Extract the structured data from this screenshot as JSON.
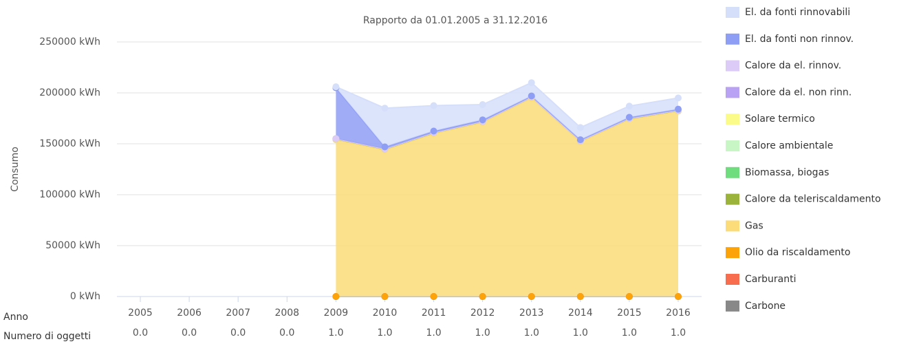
{
  "chart_data": {
    "type": "area",
    "stacked": true,
    "title": "Rapporto da 01.01.2005 a 31.12.2016",
    "y_label": "Consumo",
    "x_label": "Anno",
    "count_label": "Numero di oggetti",
    "categories": [
      "2005",
      "2006",
      "2007",
      "2008",
      "2009",
      "2010",
      "2011",
      "2012",
      "2013",
      "2014",
      "2015",
      "2016"
    ],
    "object_counts": [
      0,
      0,
      0,
      0,
      1,
      1,
      1,
      1,
      1,
      1,
      1,
      1
    ],
    "object_count_labels": [
      "0.0",
      "0.0",
      "0.0",
      "0.0",
      "1.0",
      "1.0",
      "1.0",
      "1.0",
      "1.0",
      "1.0",
      "1.0",
      "1.0"
    ],
    "ylim": [
      0,
      250000
    ],
    "yticks": [
      {
        "value": 0,
        "label": "0 kWh"
      },
      {
        "value": 50000,
        "label": "50000 kWh"
      },
      {
        "value": 100000,
        "label": "100000 kWh"
      },
      {
        "value": 150000,
        "label": "150000 kWh"
      },
      {
        "value": 200000,
        "label": "200000 kWh"
      },
      {
        "value": 250000,
        "label": "250000 kWh"
      }
    ],
    "grid": true,
    "series": [
      {
        "name": "Carbone",
        "color": "#888888",
        "values": [
          null,
          null,
          null,
          null,
          0,
          0,
          0,
          0,
          0,
          0,
          0,
          0
        ]
      },
      {
        "name": "Carburanti",
        "color": "#f86d4e",
        "values": [
          null,
          null,
          null,
          null,
          0,
          0,
          0,
          0,
          0,
          0,
          0,
          0
        ]
      },
      {
        "name": "Olio da riscaldamento",
        "color": "#fca30a",
        "values": [
          null,
          null,
          null,
          null,
          0,
          0,
          0,
          0,
          0,
          0,
          0,
          0
        ]
      },
      {
        "name": "Gas",
        "color": "#fbdc78",
        "values": [
          null,
          null,
          null,
          null,
          154000,
          144000,
          160000,
          171000,
          195000,
          152000,
          174000,
          182000
        ]
      },
      {
        "name": "Calore da teleriscaldamento",
        "color": "#9bb33b",
        "values": [
          null,
          null,
          null,
          null,
          1000,
          1000,
          1000,
          1000,
          1000,
          1000,
          1000,
          1000
        ]
      },
      {
        "name": "Biomassa, biogas",
        "color": "#6fdc7e",
        "values": [
          null,
          null,
          null,
          null,
          0,
          0,
          0,
          0,
          0,
          0,
          0,
          0
        ]
      },
      {
        "name": "Calore ambientale",
        "color": "#c8f7c5",
        "values": [
          null,
          null,
          null,
          null,
          0,
          0,
          0,
          0,
          0,
          0,
          0,
          0
        ]
      },
      {
        "name": "Solare termico",
        "color": "#fbfb8a",
        "values": [
          null,
          null,
          null,
          null,
          0,
          0,
          0,
          0,
          0,
          0,
          0,
          0
        ]
      },
      {
        "name": "Calore da el. non rinn.",
        "color": "#b9a1f3",
        "values": [
          null,
          null,
          null,
          null,
          0,
          0,
          0,
          0,
          0,
          0,
          0,
          0
        ]
      },
      {
        "name": "Calore da el. rinnov.",
        "color": "#dccbf7",
        "values": [
          null,
          null,
          null,
          null,
          0,
          0,
          0,
          0,
          0,
          0,
          0,
          0
        ]
      },
      {
        "name": "El. da fonti non rinnov.",
        "color": "#8f9ef5",
        "values": [
          null,
          null,
          null,
          null,
          50000,
          2000,
          1500,
          1500,
          1000,
          1000,
          1000,
          1000
        ]
      },
      {
        "name": "El. da fonti rinnovabili",
        "color": "#d6dffa",
        "values": [
          null,
          null,
          null,
          null,
          1000,
          38000,
          25000,
          15000,
          13000,
          12000,
          11000,
          11000
        ]
      }
    ]
  }
}
